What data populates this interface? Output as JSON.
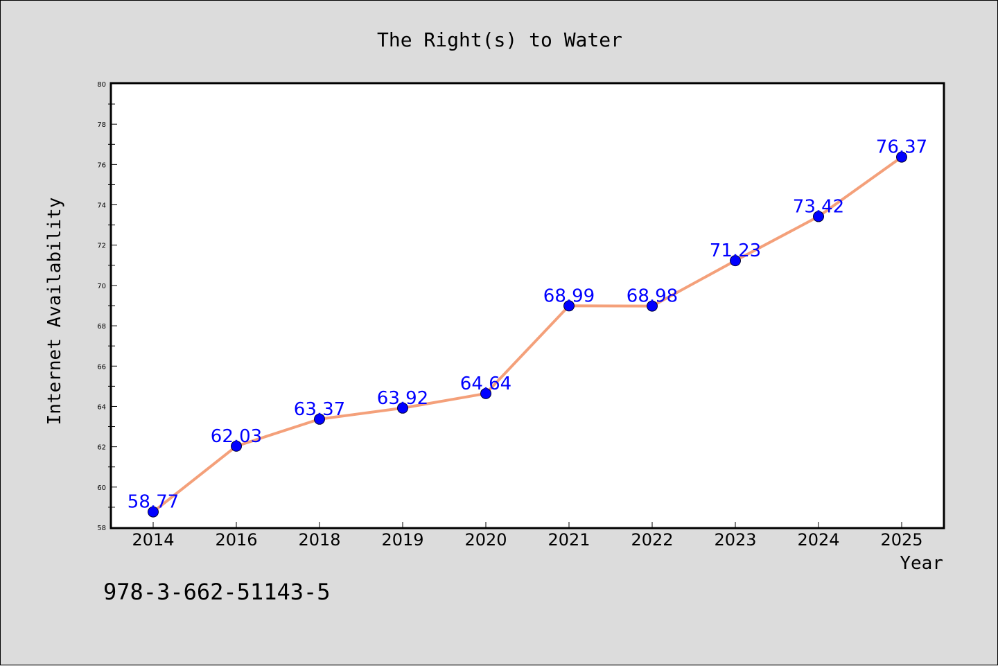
{
  "chart_data": {
    "type": "line",
    "title": "The Right(s) to Water",
    "xlabel": "Year",
    "ylabel": "Internet Availability",
    "categories": [
      "2014",
      "2016",
      "2018",
      "2019",
      "2020",
      "2021",
      "2022",
      "2023",
      "2024",
      "2025"
    ],
    "values": [
      58.77,
      62.03,
      63.37,
      63.92,
      64.64,
      68.99,
      68.98,
      71.23,
      73.42,
      76.37
    ],
    "data_labels": [
      "58.77",
      "62.03",
      "63.37",
      "63.92",
      "64.64",
      "68.99",
      "68.98",
      "71.23",
      "73.42",
      "76.37"
    ],
    "ylim": [
      58,
      80
    ],
    "y_ticks": [
      "58",
      "60",
      "62",
      "64",
      "66",
      "68",
      "70",
      "72",
      "74",
      "76",
      "78",
      "80"
    ],
    "grid": false,
    "legend": "none",
    "colors": {
      "background": "#dcdcdc",
      "plot_area": "#ffffff",
      "line": "#f4a07a",
      "marker": "#0000ff",
      "data_label": "#0000ff",
      "text": "#000000"
    }
  },
  "footer": {
    "isbn": "978-3-662-51143-5"
  }
}
